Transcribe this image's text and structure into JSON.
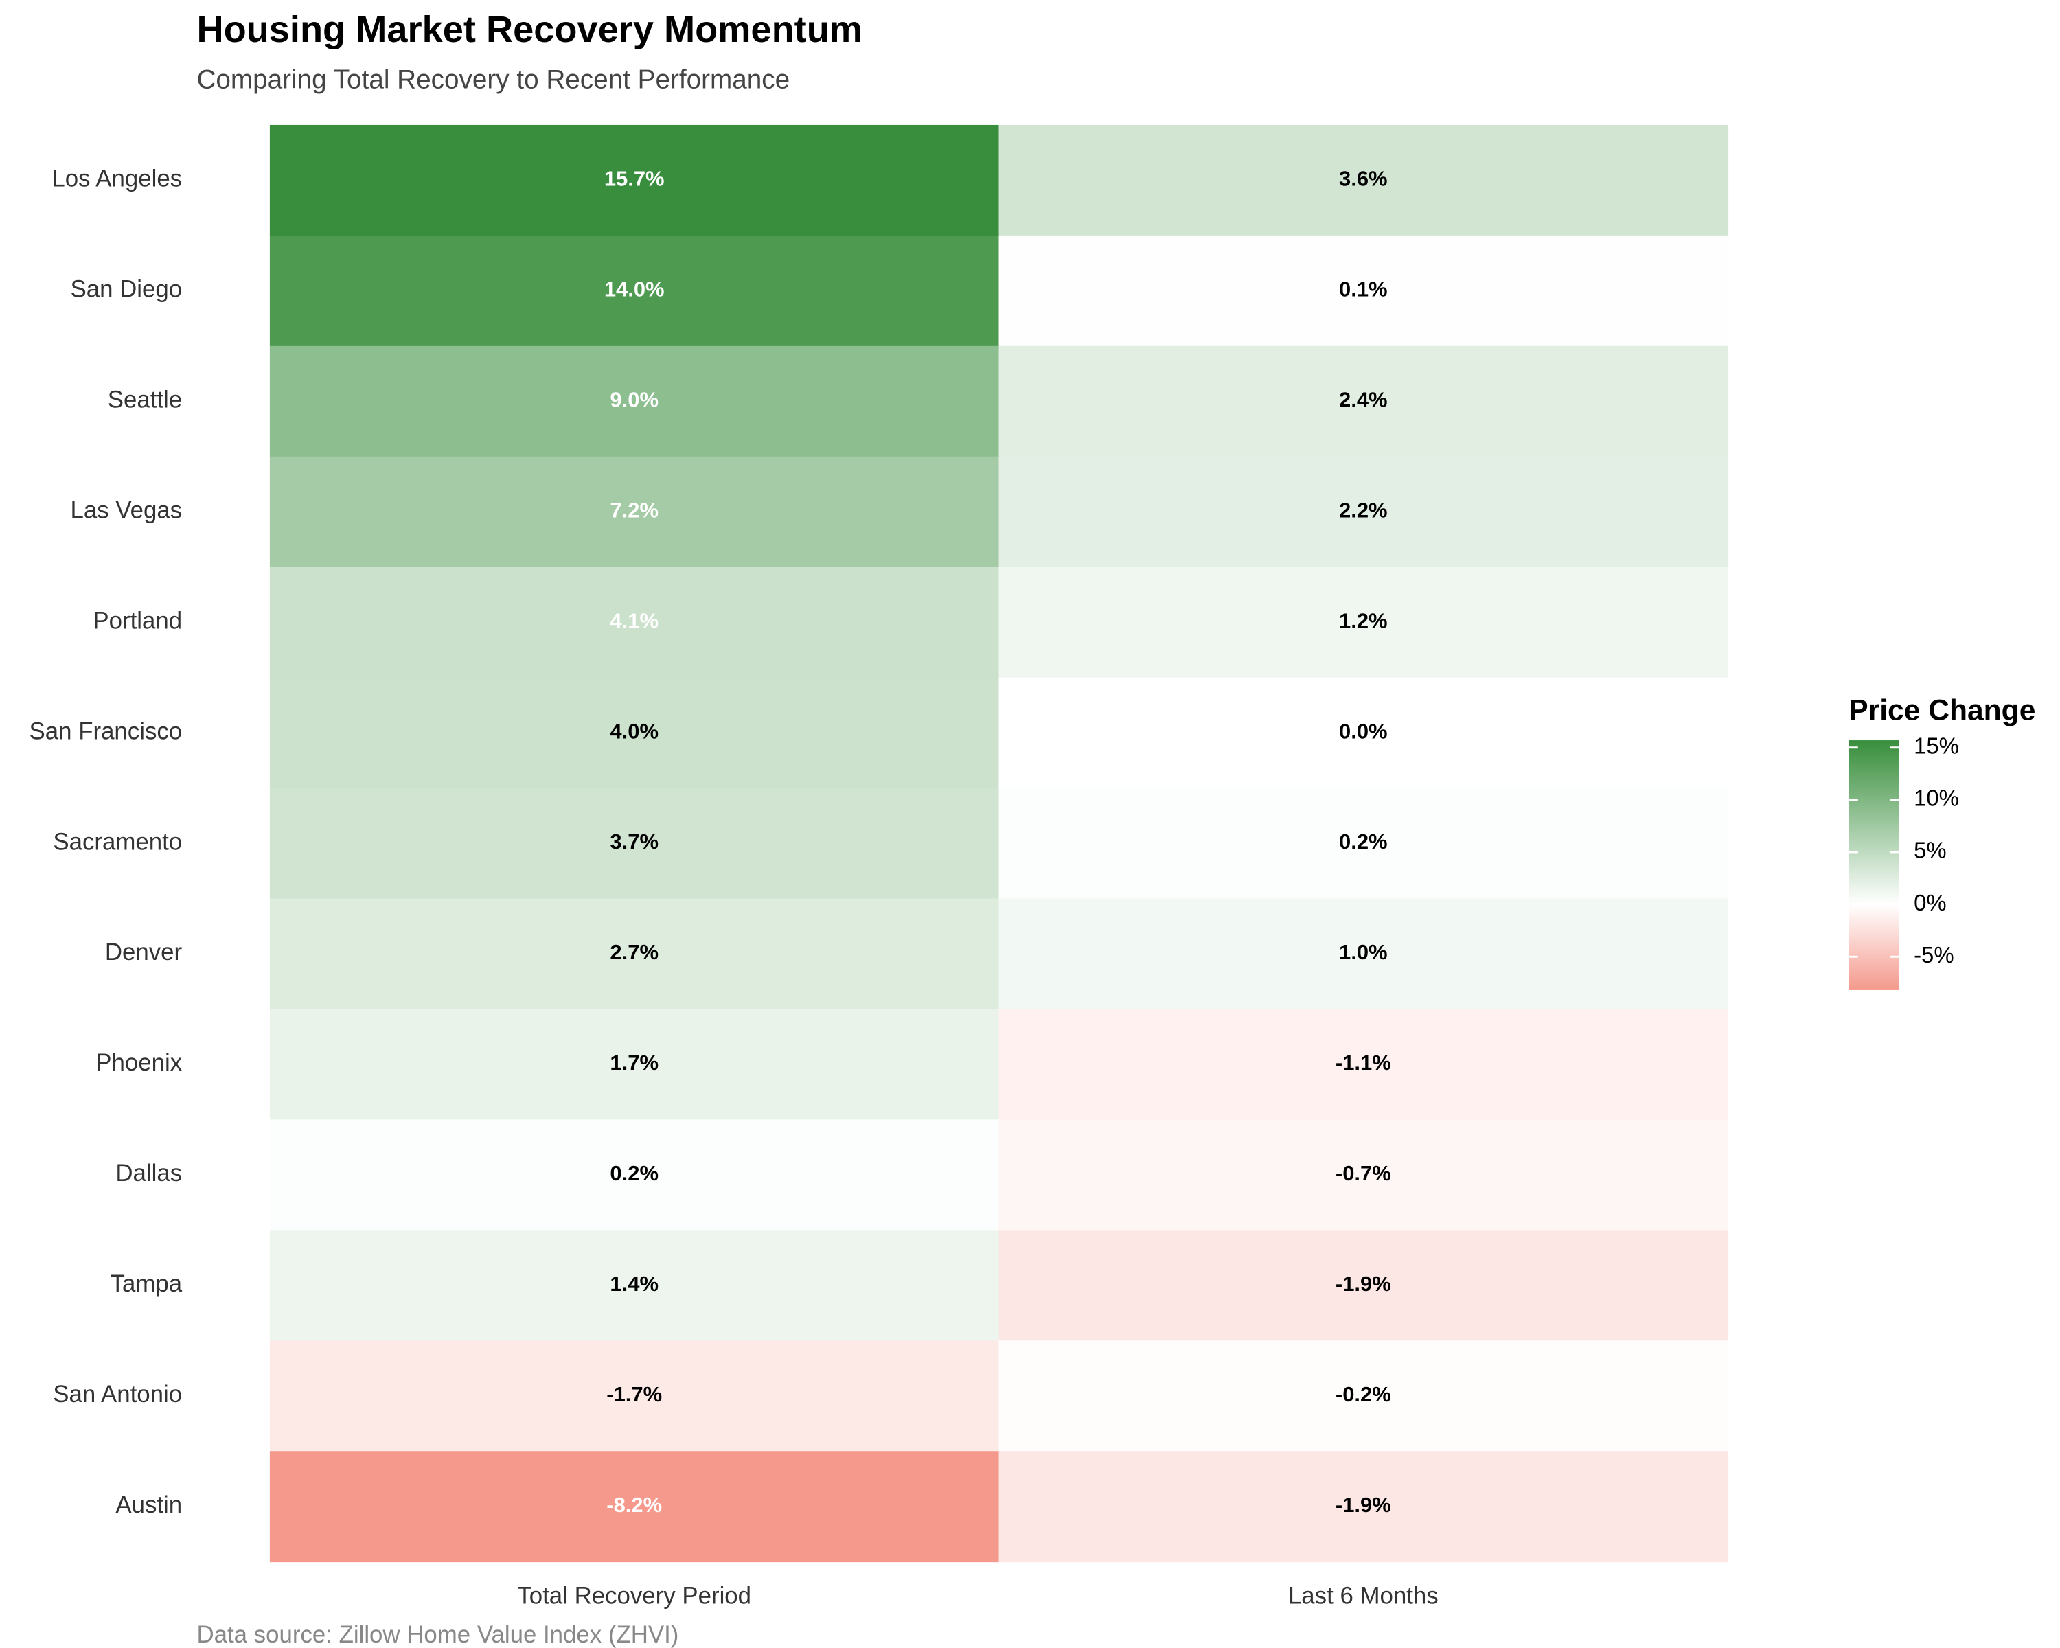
{
  "chart_data": {
    "type": "heatmap",
    "title": "Housing Market Recovery Momentum",
    "subtitle": "Comparing Total Recovery to Recent Performance",
    "caption": "Data source: Zillow Home Value Index (ZHVI)",
    "rows": [
      "Los Angeles",
      "San Diego",
      "Seattle",
      "Las Vegas",
      "Portland",
      "San Francisco",
      "Sacramento",
      "Denver",
      "Phoenix",
      "Dallas",
      "Tampa",
      "San Antonio",
      "Austin"
    ],
    "columns": [
      "Total Recovery Period",
      "Last 6 Months"
    ],
    "values": [
      [
        15.7,
        3.6
      ],
      [
        14.0,
        0.1
      ],
      [
        9.0,
        2.4
      ],
      [
        7.2,
        2.2
      ],
      [
        4.1,
        1.2
      ],
      [
        4.0,
        0.0
      ],
      [
        3.7,
        0.2
      ],
      [
        2.7,
        1.0
      ],
      [
        1.7,
        -1.1
      ],
      [
        0.2,
        -0.7
      ],
      [
        1.4,
        -1.9
      ],
      [
        -1.7,
        -0.2
      ],
      [
        -8.2,
        -1.9
      ]
    ],
    "value_labels": [
      [
        "15.7%",
        "3.6%"
      ],
      [
        "14.0%",
        "0.1%"
      ],
      [
        "9.0%",
        "2.4%"
      ],
      [
        "7.2%",
        "2.2%"
      ],
      [
        "4.1%",
        "1.2%"
      ],
      [
        "4.0%",
        "0.0%"
      ],
      [
        "3.7%",
        "0.2%"
      ],
      [
        "2.7%",
        "1.0%"
      ],
      [
        "1.7%",
        "-1.1%"
      ],
      [
        "0.2%",
        "-0.7%"
      ],
      [
        "1.4%",
        "-1.9%"
      ],
      [
        "-1.7%",
        "-0.2%"
      ],
      [
        "-8.2%",
        "-1.9%"
      ]
    ],
    "legend_title": "Price Change",
    "color_scale": {
      "low": "#f4998c",
      "mid": "#ffffff",
      "high": "#388e3c"
    },
    "clim": [
      -8.2,
      15.7
    ],
    "cticks": [
      {
        "value": 15,
        "label": "15%"
      },
      {
        "value": 10,
        "label": "10%"
      },
      {
        "value": 5,
        "label": "5%"
      },
      {
        "value": 0,
        "label": "0%"
      },
      {
        "value": -5,
        "label": "-5%"
      }
    ]
  }
}
